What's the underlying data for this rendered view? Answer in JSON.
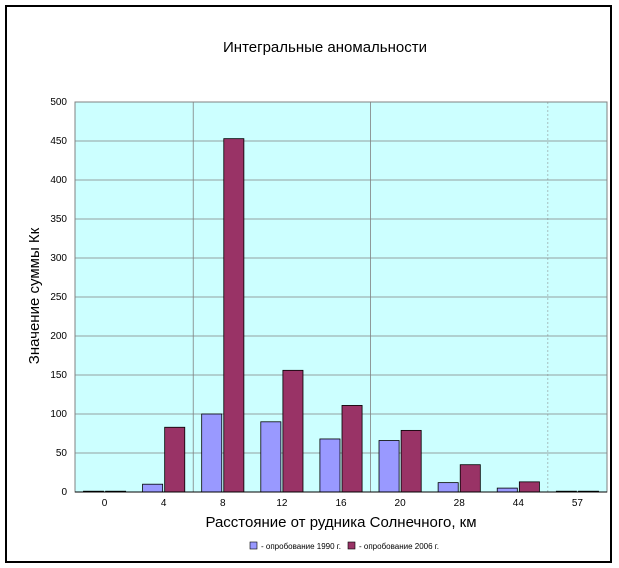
{
  "chart_data": {
    "type": "bar",
    "title": "Интегральные аномальности",
    "xlabel": "Расстояние от рудника Солнечного, км",
    "ylabel": "Значение суммы Кк",
    "categories": [
      "0",
      "4",
      "8",
      "12",
      "16",
      "20",
      "28",
      "44",
      "57"
    ],
    "series": [
      {
        "name": "- опробование 1990 г.",
        "color": "#9999ff",
        "values": [
          0,
          10,
          100,
          90,
          68,
          66,
          12,
          5,
          0
        ]
      },
      {
        "name": "- опробование 2006 г.",
        "color": "#993366",
        "values": [
          0,
          83,
          453,
          156,
          111,
          79,
          35,
          13,
          1
        ]
      }
    ],
    "yticks": [
      0,
      50,
      100,
      150,
      200,
      250,
      300,
      350,
      400,
      450,
      500
    ],
    "ylim": [
      0,
      500
    ],
    "grid": true,
    "plot_background": "#ccffff",
    "legend_position": "bottom"
  }
}
